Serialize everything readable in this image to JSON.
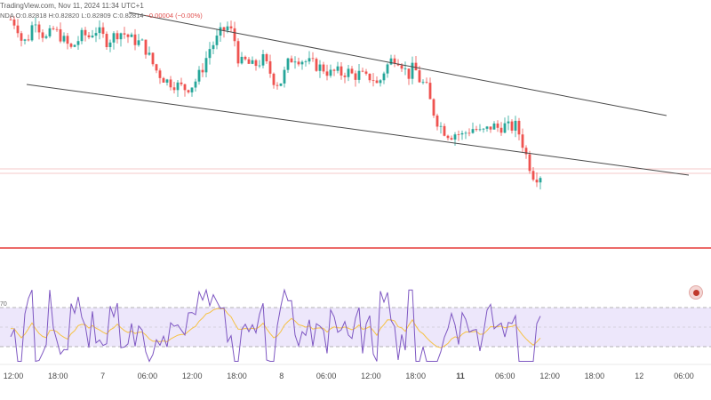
{
  "header": {
    "source": "TradingView.com, Nov 11, 2024 11:34 UTC+1",
    "symbol_fragment": "NDA",
    "ohlc": {
      "o": "O:0.82818",
      "h": "H:0.82820",
      "l": "L:0.82809",
      "c": "C:0.82814",
      "change": "−0.00004 (−0.00%)"
    }
  },
  "indicator": {
    "level_label": "70"
  },
  "icons": {
    "alert": "alert-icon"
  },
  "colors": {
    "up": "#26a69a",
    "down": "#ef5350",
    "trendline": "#555555",
    "support": "#e53935",
    "rsi_line": "#7e57c2",
    "rsi_ma": "#f6c244",
    "rsi_band": "#ede7fb"
  },
  "chart_data": {
    "type": "candlestick",
    "x_tick_labels": [
      "12:00",
      "18:00",
      "7",
      "06:00",
      "12:00",
      "18:00",
      "8",
      "06:00",
      "12:00",
      "18:00",
      "11",
      "06:00",
      "12:00",
      "18:00",
      "12",
      "06:00"
    ],
    "x_tick_bold": [
      false,
      false,
      false,
      false,
      false,
      false,
      false,
      false,
      false,
      false,
      true,
      false,
      false,
      false,
      false,
      false
    ],
    "price_path": [
      0.8345,
      0.8343,
      0.8335,
      0.8338,
      0.8346,
      0.834,
      0.8337,
      0.8341,
      0.8339,
      0.8336,
      0.8333,
      0.8336,
      0.8339,
      0.8338,
      0.8341,
      0.8339,
      0.8336,
      0.8338,
      0.834,
      0.8339,
      0.8337,
      0.8336,
      0.8335,
      0.833,
      0.8325,
      0.8322,
      0.832,
      0.8319,
      0.8318,
      0.8317,
      0.8318,
      0.8321,
      0.8326,
      0.8333,
      0.8336,
      0.834,
      0.8342,
      0.8339,
      0.8327,
      0.8328,
      0.8326,
      0.8327,
      0.8329,
      0.8324,
      0.8319,
      0.832,
      0.8327,
      0.833,
      0.8329,
      0.8328,
      0.8327,
      0.8326,
      0.8325,
      0.8323,
      0.8324,
      0.8323,
      0.8324,
      0.8322,
      0.8323,
      0.8321,
      0.8322,
      0.8318,
      0.8324,
      0.8328,
      0.833,
      0.8327,
      0.8322,
      0.8326,
      0.832,
      0.8318,
      0.8309,
      0.8303,
      0.83,
      0.8298,
      0.8299,
      0.8298,
      0.83,
      0.8301,
      0.8299,
      0.83,
      0.8302,
      0.8301,
      0.8302,
      0.8301,
      0.8302,
      0.8295,
      0.8287,
      0.8281,
      0.8282
    ]
  }
}
